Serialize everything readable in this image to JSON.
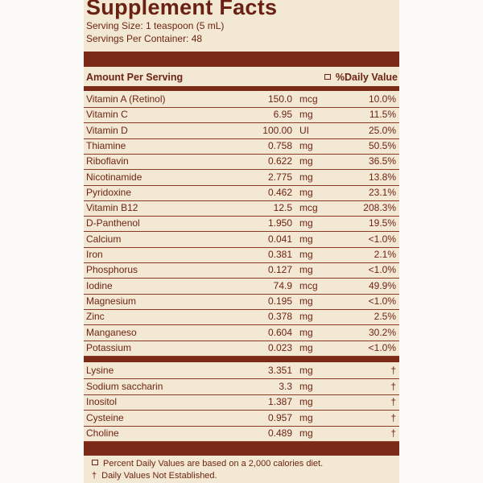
{
  "title": "Supplement Facts",
  "serving_size": "Serving Size: 1 teaspoon (5 mL)",
  "servings_per_container": "Servings Per Container: 48",
  "header": {
    "amount": "Amount Per Serving",
    "daily_value": "%Daily Value"
  },
  "nutrients": [
    {
      "name": "Vitamin A (Retinol)",
      "amount": "150.0",
      "unit": "mcg",
      "dv": "10.0%"
    },
    {
      "name": "Vitamin C",
      "amount": "6.95",
      "unit": "mg",
      "dv": "11.5%"
    },
    {
      "name": "Vitamin D",
      "amount": "100.00",
      "unit": "UI",
      "dv": "25.0%"
    },
    {
      "name": "Thiamine",
      "amount": "0.758",
      "unit": "mg",
      "dv": "50.5%"
    },
    {
      "name": "Riboflavin",
      "amount": "0.622",
      "unit": "mg",
      "dv": "36.5%"
    },
    {
      "name": "Nicotinamide",
      "amount": "2.775",
      "unit": "mg",
      "dv": "13.8%"
    },
    {
      "name": "Pyridoxine",
      "amount": "0.462",
      "unit": "mg",
      "dv": "23.1%"
    },
    {
      "name": "Vitamin B12",
      "amount": "12.5",
      "unit": "mcg",
      "dv": "208.3%"
    },
    {
      "name": "D-Panthenol",
      "amount": "1.950",
      "unit": "mg",
      "dv": "19.5%"
    },
    {
      "name": "Calcium",
      "amount": "0.041",
      "unit": "mg",
      "dv": "<1.0%"
    },
    {
      "name": "Iron",
      "amount": "0.381",
      "unit": "mg",
      "dv": "2.1%"
    },
    {
      "name": "Phosphorus",
      "amount": "0.127",
      "unit": "mg",
      "dv": "<1.0%"
    },
    {
      "name": "Iodine",
      "amount": "74.9",
      "unit": "mcg",
      "dv": "49.9%"
    },
    {
      "name": "Magnesium",
      "amount": "0.195",
      "unit": "mg",
      "dv": "<1.0%"
    },
    {
      "name": "Zinc",
      "amount": "0.378",
      "unit": "mg",
      "dv": "2.5%"
    },
    {
      "name": "Manganeso",
      "amount": "0.604",
      "unit": "mg",
      "dv": "30.2%"
    },
    {
      "name": "Potassium",
      "amount": "0.023",
      "unit": "mg",
      "dv": "<1.0%"
    }
  ],
  "other": [
    {
      "name": "Lysine",
      "amount": "3.351",
      "unit": "mg",
      "dv": "†"
    },
    {
      "name": "Sodium saccharin",
      "amount": "3.3",
      "unit": "mg",
      "dv": "†"
    },
    {
      "name": "Inositol",
      "amount": "1.387",
      "unit": "mg",
      "dv": "†"
    },
    {
      "name": "Cysteine",
      "amount": "0.957",
      "unit": "mg",
      "dv": "†"
    },
    {
      "name": "Choline",
      "amount": "0.489",
      "unit": "mg",
      "dv": "†"
    }
  ],
  "footnotes": {
    "percent": "Percent Daily Values are based on a 2,000 calories diet.",
    "dagger_symbol": "†",
    "dagger": "Daily Values Not Established."
  }
}
